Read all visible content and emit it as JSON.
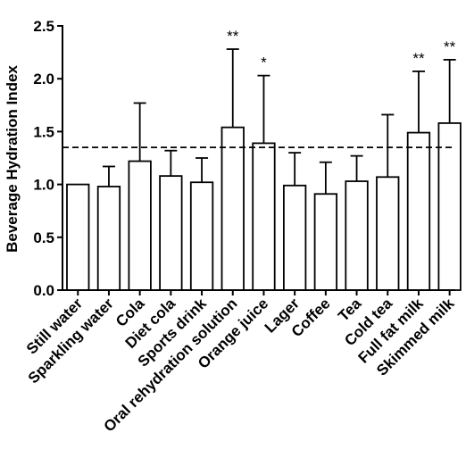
{
  "chart_data": {
    "type": "bar",
    "ylabel": "Beverage Hydration Index",
    "xlabel": "",
    "ylim": [
      0,
      2.5
    ],
    "yticks": [
      "0.0",
      "0.5",
      "1.0",
      "1.5",
      "2.0",
      "2.5"
    ],
    "grid": false,
    "categories": [
      "Still water",
      "Sparkling water",
      "Cola",
      "Diet cola",
      "Sports drink",
      "Oral rehydration solution",
      "Orange juice",
      "Lager",
      "Coffee",
      "Tea",
      "Cold tea",
      "Full fat milk",
      "Skimmed milk"
    ],
    "values": [
      1.0,
      0.98,
      1.22,
      1.08,
      1.02,
      1.54,
      1.39,
      0.99,
      0.91,
      1.03,
      1.07,
      1.49,
      1.58
    ],
    "error_upper": [
      1.0,
      1.17,
      1.77,
      1.32,
      1.25,
      2.28,
      2.03,
      1.3,
      1.21,
      1.27,
      1.66,
      2.07,
      2.18
    ],
    "significance": [
      "",
      "",
      "",
      "",
      "",
      "**",
      "*",
      "",
      "",
      "",
      "",
      "**",
      "**"
    ],
    "reference_line": 1.35,
    "bar_color": "#ffffff",
    "edge_color": "#000000"
  }
}
